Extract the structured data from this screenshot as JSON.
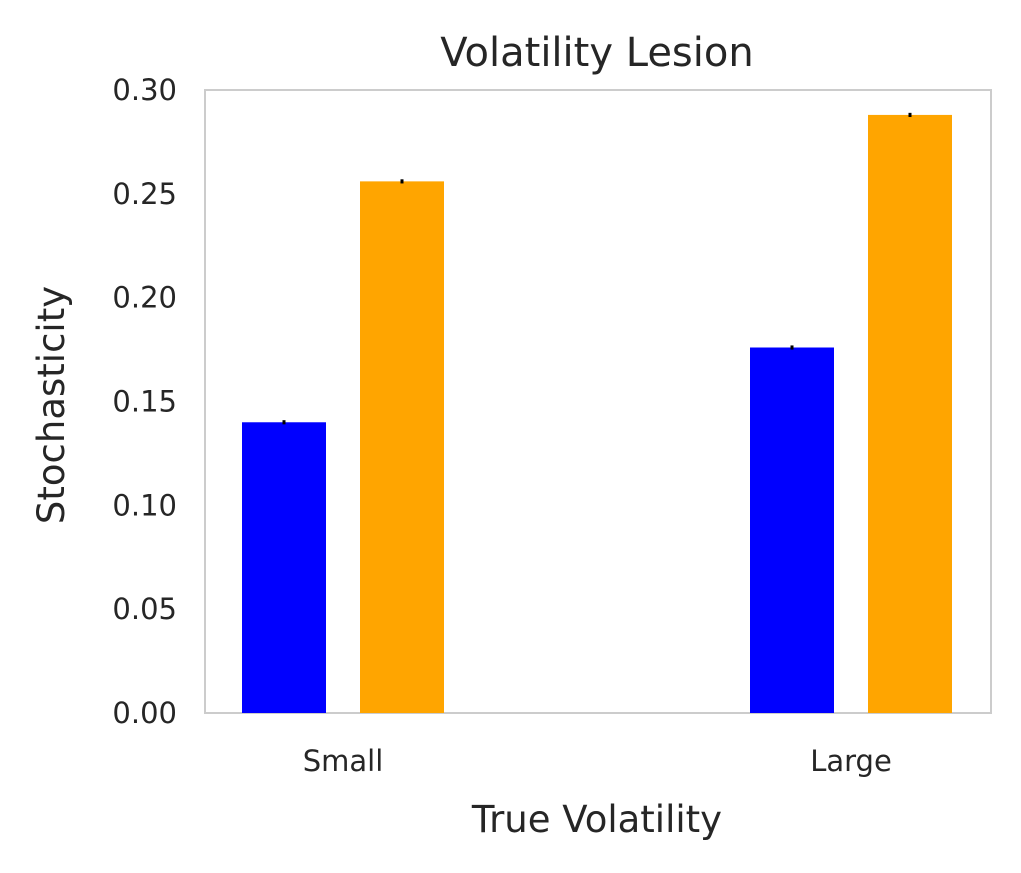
{
  "chart_data": {
    "type": "bar",
    "title": "Volatility Lesion",
    "xlabel": "True Volatility",
    "ylabel": "Stochasticity",
    "categories": [
      "Small",
      "Large"
    ],
    "series": [
      {
        "values": [
          0.14,
          0.176
        ],
        "errors": [
          0.001,
          0.001
        ],
        "color": "#0000ff"
      },
      {
        "values": [
          0.256,
          0.288
        ],
        "errors": [
          0.001,
          0.001
        ],
        "color": "#ffa500"
      }
    ],
    "ylim": [
      0.0,
      0.3
    ],
    "yticks": [
      "0.00",
      "0.05",
      "0.10",
      "0.15",
      "0.20",
      "0.25",
      "0.30"
    ],
    "grid": false,
    "legend": "none",
    "frame_color": "#cccccc",
    "errorbar_color": "#000000"
  }
}
